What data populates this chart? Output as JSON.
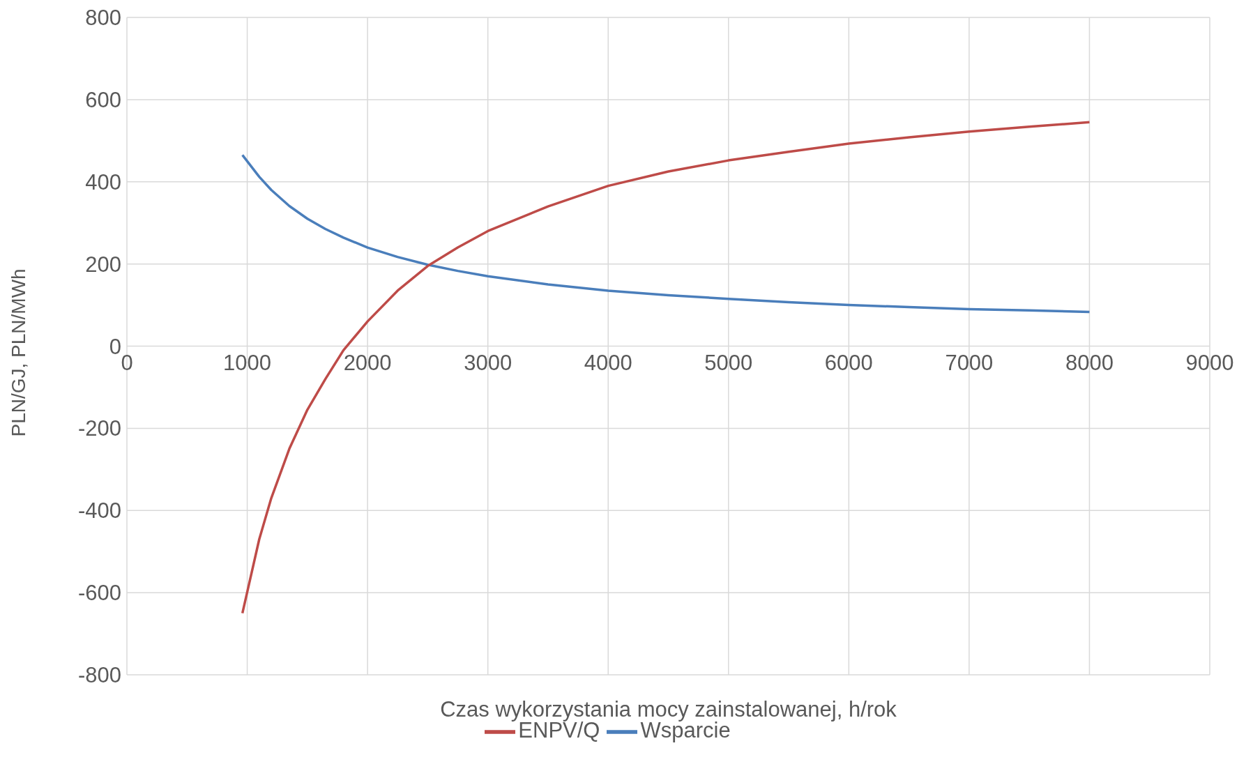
{
  "chart_data": {
    "type": "line",
    "xlabel": "Czas wykorzystania mocy zainstalowanej, h/rok",
    "ylabel": "PLN/GJ, PLN/MWh",
    "x": [
      960,
      1100,
      1200,
      1350,
      1500,
      1650,
      1800,
      2000,
      2250,
      2500,
      2750,
      3000,
      3500,
      4000,
      4500,
      5000,
      5500,
      6000,
      6500,
      7000,
      7500,
      8000
    ],
    "series": [
      {
        "name": "Wsparcie",
        "color": "#4a7ebb",
        "values": [
          465,
          412,
          380,
          341,
          310,
          285,
          264,
          240,
          217,
          198,
          183,
          170,
          150,
          135,
          124,
          115,
          107,
          100,
          95,
          90,
          87,
          83
        ]
      },
      {
        "name": "ENPV/Q",
        "color": "#be4b48",
        "values": [
          -650,
          -470,
          -370,
          -250,
          -155,
          -80,
          -10,
          60,
          135,
          195,
          240,
          280,
          340,
          390,
          425,
          452,
          473,
          493,
          508,
          522,
          534,
          545
        ]
      }
    ],
    "xlim": [
      0,
      9000
    ],
    "xticks": [
      0,
      1000,
      2000,
      3000,
      4000,
      5000,
      6000,
      7000,
      8000,
      9000
    ],
    "ylim": [
      -800,
      800
    ],
    "yticks": [
      -800,
      -600,
      -400,
      -200,
      0,
      200,
      400,
      600,
      800
    ],
    "grid": true,
    "legend": "bottom",
    "marker": "none",
    "line_style": "solid"
  }
}
